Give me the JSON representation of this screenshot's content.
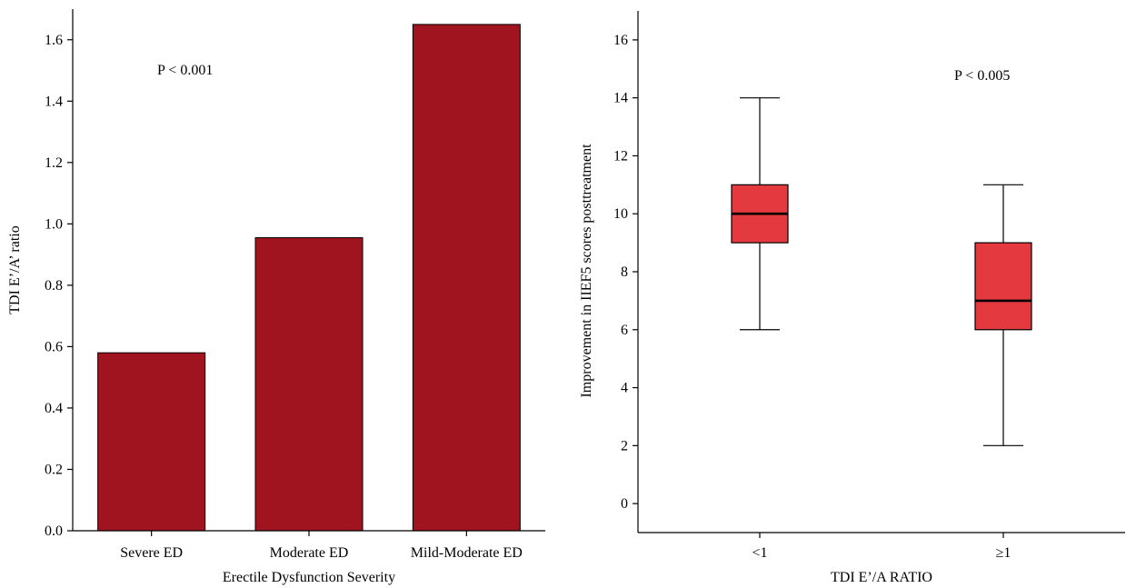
{
  "chart_data": [
    {
      "type": "bar",
      "categories": [
        "Severe ED",
        "Moderate ED",
        "Mild-Moderate ED"
      ],
      "values": [
        0.58,
        0.955,
        1.65
      ],
      "xlabel": "Erectile Dysfunction Severity",
      "ylabel": "TDI E’/A’ ratio",
      "ylim": [
        0,
        1.7
      ],
      "yticks": [
        "0.0",
        "0.2",
        "0.4",
        "0.6",
        "0.8",
        "1.0",
        "1.2",
        "1.4",
        "1.6"
      ],
      "annotation": "P < 0.001",
      "bar_color": "#a0141f",
      "grid": false
    },
    {
      "type": "box",
      "categories": [
        "<1",
        "≥1"
      ],
      "boxes": [
        {
          "min": 6,
          "q1": 9,
          "median": 10,
          "q3": 11,
          "max": 14
        },
        {
          "min": 2,
          "q1": 6,
          "median": 7,
          "q3": 9,
          "max": 11
        }
      ],
      "xlabel": "TDI E’/A RATIO",
      "ylabel": "Improvement in IIEF5 scores posttreatment",
      "ylim": [
        -1,
        17
      ],
      "yticks": [
        "0",
        "2",
        "4",
        "6",
        "8",
        "10",
        "12",
        "14",
        "16"
      ],
      "annotation": "P < 0.005",
      "box_color": "#e43a3f",
      "grid": false
    }
  ]
}
